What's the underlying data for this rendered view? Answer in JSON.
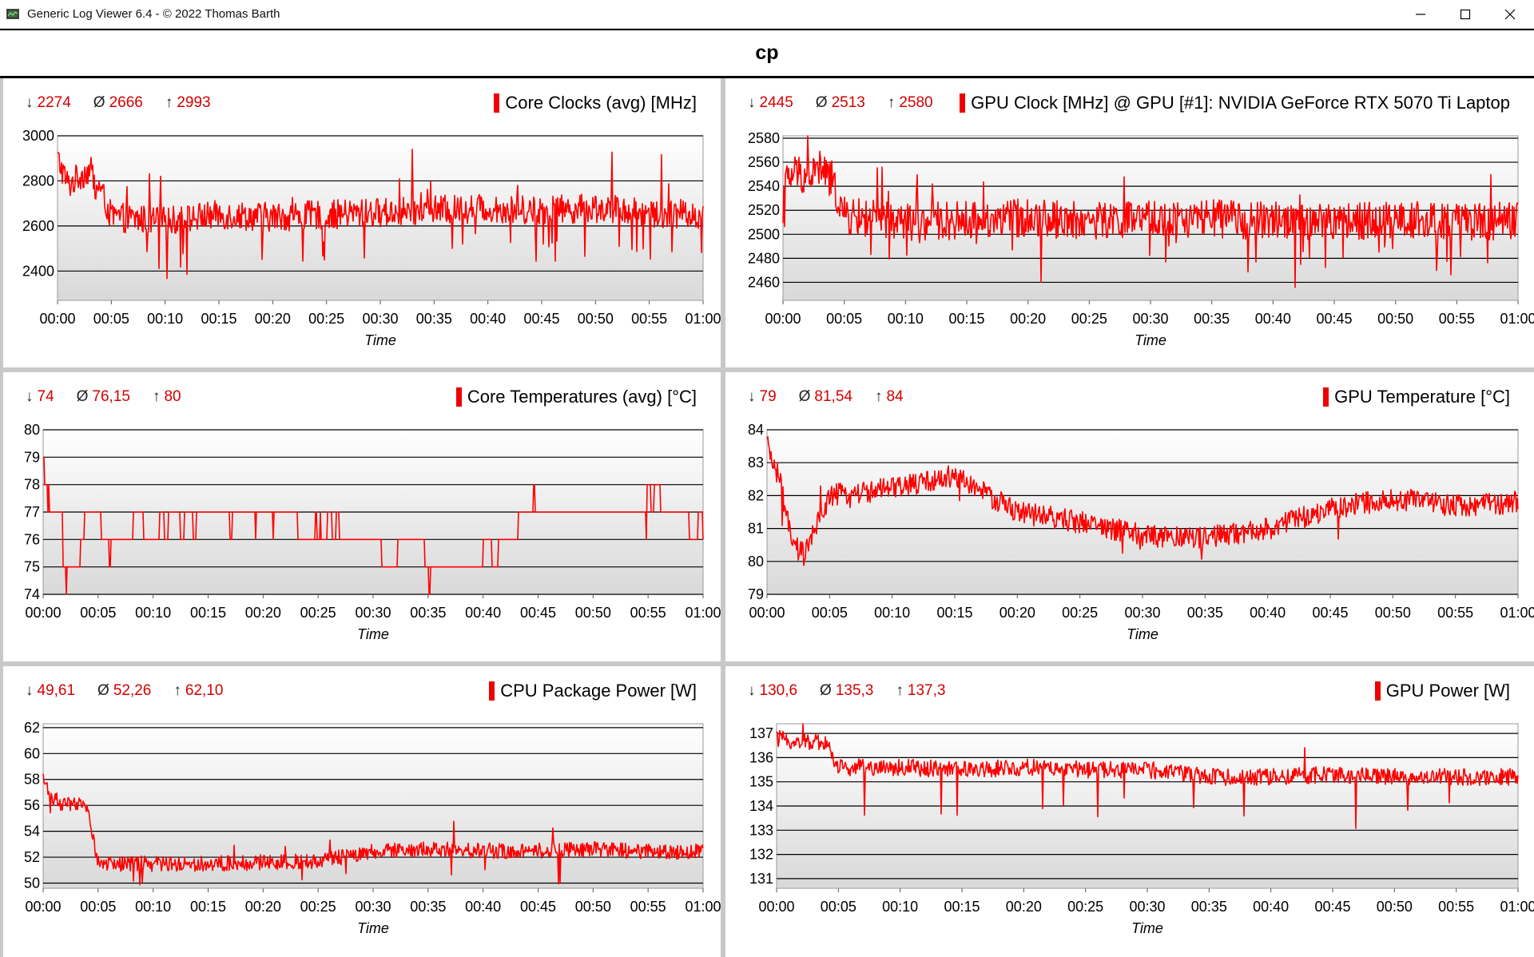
{
  "window": {
    "title": "Generic Log Viewer 6.4 - © 2022 Thomas Barth",
    "controls": [
      "minimize",
      "maximize",
      "close"
    ]
  },
  "header": {
    "title": "cp"
  },
  "colors": {
    "line": "#ff0000",
    "stats": "#d40000",
    "marker": "#ee0000"
  },
  "panels": [
    {
      "title": "Core Clocks (avg) [MHz]",
      "stats": {
        "min": "2274",
        "avg": "2666",
        "max": "2993"
      },
      "x_label": "Time",
      "x_ticks": [
        "00:00",
        "00:05",
        "00:10",
        "00:15",
        "00:20",
        "00:25",
        "00:30",
        "00:35",
        "00:40",
        "00:45",
        "00:50",
        "00:55",
        "01:00"
      ],
      "y_ticks": [
        "3000",
        "2800",
        "2600",
        "2400"
      ]
    },
    {
      "title": "GPU Clock [MHz] @ GPU [#1]: NVIDIA GeForce RTX 5070 Ti Laptop",
      "stats": {
        "min": "2445",
        "avg": "2513",
        "max": "2580"
      },
      "x_label": "Time",
      "x_ticks": [
        "00:00",
        "00:05",
        "00:10",
        "00:15",
        "00:20",
        "00:25",
        "00:30",
        "00:35",
        "00:40",
        "00:45",
        "00:50",
        "00:55",
        "01:00"
      ],
      "y_ticks": [
        "2580",
        "2560",
        "2540",
        "2520",
        "2500",
        "2480",
        "2460"
      ]
    },
    {
      "title": "Core Temperatures (avg) [°C]",
      "stats": {
        "min": "74",
        "avg": "76,15",
        "max": "80"
      },
      "x_label": "Time",
      "x_ticks": [
        "00:00",
        "00:05",
        "00:10",
        "00:15",
        "00:20",
        "00:25",
        "00:30",
        "00:35",
        "00:40",
        "00:45",
        "00:50",
        "00:55",
        "01:00"
      ],
      "y_ticks": [
        "80",
        "79",
        "78",
        "77",
        "76",
        "75",
        "74"
      ]
    },
    {
      "title": "GPU Temperature [°C]",
      "stats": {
        "min": "79",
        "avg": "81,54",
        "max": "84"
      },
      "x_label": "Time",
      "x_ticks": [
        "00:00",
        "00:05",
        "00:10",
        "00:15",
        "00:20",
        "00:25",
        "00:30",
        "00:35",
        "00:40",
        "00:45",
        "00:50",
        "00:55",
        "01:00"
      ],
      "y_ticks": [
        "84",
        "83",
        "82",
        "81",
        "80",
        "79"
      ]
    },
    {
      "title": "CPU Package Power [W]",
      "stats": {
        "min": "49,61",
        "avg": "52,26",
        "max": "62,10"
      },
      "x_label": "Time",
      "x_ticks": [
        "00:00",
        "00:05",
        "00:10",
        "00:15",
        "00:20",
        "00:25",
        "00:30",
        "00:35",
        "00:40",
        "00:45",
        "00:50",
        "00:55",
        "01:00"
      ],
      "y_ticks": [
        "62",
        "60",
        "58",
        "56",
        "54",
        "52",
        "50"
      ]
    },
    {
      "title": "GPU Power [W]",
      "stats": {
        "min": "130,6",
        "avg": "135,3",
        "max": "137,3"
      },
      "x_label": "Time",
      "x_ticks": [
        "00:00",
        "00:05",
        "00:10",
        "00:15",
        "00:20",
        "00:25",
        "00:30",
        "00:35",
        "00:40",
        "00:45",
        "00:50",
        "00:55",
        "01:00"
      ],
      "y_ticks": [
        "137",
        "136",
        "135",
        "134",
        "133",
        "132",
        "131"
      ]
    }
  ],
  "chart_data": [
    {
      "type": "line",
      "title": "Core Clocks (avg) [MHz]",
      "xlabel": "Time",
      "ylabel": "",
      "x_range": [
        "00:00",
        "01:00"
      ],
      "ylim": [
        2270,
        3000
      ],
      "y_ticks": [
        2400,
        2600,
        2800,
        3000
      ],
      "grid": true,
      "series": [
        {
          "name": "Core Clocks (avg) [MHz]",
          "x": [
            "00:00",
            "00:01",
            "00:02",
            "00:03",
            "00:04",
            "00:05",
            "00:10",
            "00:15",
            "00:20",
            "00:25",
            "00:30",
            "00:35",
            "00:40",
            "00:45",
            "00:50",
            "00:55",
            "01:00"
          ],
          "values": [
            2900,
            2780,
            2820,
            2850,
            2760,
            2640,
            2620,
            2650,
            2640,
            2650,
            2660,
            2670,
            2680,
            2670,
            2680,
            2660,
            2650
          ]
        }
      ]
    },
    {
      "type": "line",
      "title": "GPU Clock [MHz] @ GPU [#1]: NVIDIA GeForce RTX 5070 Ti Laptop",
      "xlabel": "Time",
      "ylabel": "",
      "x_range": [
        "00:00",
        "01:00"
      ],
      "ylim": [
        2445,
        2582
      ],
      "y_ticks": [
        2460,
        2480,
        2500,
        2520,
        2540,
        2560,
        2580
      ],
      "grid": true,
      "series": [
        {
          "name": "GPU Clock [MHz]",
          "x": [
            "00:00",
            "00:01",
            "00:02",
            "00:03",
            "00:04",
            "00:05",
            "00:10",
            "00:15",
            "00:20",
            "00:25",
            "00:30",
            "00:35",
            "00:40",
            "00:45",
            "00:50",
            "00:55",
            "01:00"
          ],
          "values": [
            2540,
            2552,
            2548,
            2555,
            2545,
            2515,
            2510,
            2512,
            2514,
            2511,
            2512,
            2513,
            2511,
            2510,
            2512,
            2510,
            2512
          ]
        }
      ]
    },
    {
      "type": "line",
      "title": "Core Temperatures (avg) [°C]",
      "xlabel": "Time",
      "ylabel": "",
      "x_range": [
        "00:00",
        "01:00"
      ],
      "ylim": [
        74,
        80
      ],
      "y_ticks": [
        74,
        75,
        76,
        77,
        78,
        79,
        80
      ],
      "grid": true,
      "series": [
        {
          "name": "Core Temperatures (avg) [°C]",
          "x": [
            "00:00",
            "00:01",
            "00:02",
            "00:03",
            "00:04",
            "00:05",
            "00:10",
            "00:15",
            "00:20",
            "00:25",
            "00:30",
            "00:35",
            "00:40",
            "00:44",
            "00:45",
            "00:50",
            "00:55",
            "01:00"
          ],
          "values": [
            79,
            76,
            75,
            76,
            77,
            76,
            76,
            77,
            77,
            76,
            76,
            75,
            75,
            77,
            77,
            77,
            77,
            77
          ]
        }
      ]
    },
    {
      "type": "line",
      "title": "GPU Temperature [°C]",
      "xlabel": "Time",
      "ylabel": "",
      "x_range": [
        "00:00",
        "01:00"
      ],
      "ylim": [
        79,
        84
      ],
      "y_ticks": [
        79,
        80,
        81,
        82,
        83,
        84
      ],
      "grid": true,
      "series": [
        {
          "name": "GPU Temperature [°C]",
          "x": [
            "00:00",
            "00:01",
            "00:02",
            "00:03",
            "00:05",
            "00:10",
            "00:15",
            "00:20",
            "00:25",
            "00:30",
            "00:35",
            "00:40",
            "00:45",
            "00:50",
            "00:55",
            "01:00"
          ],
          "values": [
            83.5,
            82.5,
            80.5,
            80.2,
            82.0,
            82.2,
            82.6,
            81.5,
            81.2,
            80.8,
            80.7,
            81.0,
            81.6,
            81.9,
            81.7,
            81.8
          ]
        }
      ]
    },
    {
      "type": "line",
      "title": "CPU Package Power [W]",
      "xlabel": "Time",
      "ylabel": "",
      "x_range": [
        "00:00",
        "01:00"
      ],
      "ylim": [
        49.6,
        62.3
      ],
      "y_ticks": [
        50,
        52,
        54,
        56,
        58,
        60,
        62
      ],
      "grid": true,
      "series": [
        {
          "name": "CPU Package Power [W]",
          "x": [
            "00:00",
            "00:01",
            "00:02",
            "00:03",
            "00:04",
            "00:05",
            "00:10",
            "00:15",
            "00:20",
            "00:25",
            "00:30",
            "00:35",
            "00:40",
            "00:45",
            "00:50",
            "00:55",
            "01:00"
          ],
          "values": [
            58,
            56.5,
            56,
            56,
            56,
            51.5,
            51.5,
            51.5,
            51.6,
            51.7,
            52.4,
            52.6,
            52.5,
            52.5,
            52.6,
            52.4,
            52.5
          ]
        }
      ]
    },
    {
      "type": "line",
      "title": "GPU Power [W]",
      "xlabel": "Time",
      "ylabel": "",
      "x_range": [
        "00:00",
        "01:00"
      ],
      "ylim": [
        130.6,
        137.4
      ],
      "y_ticks": [
        131,
        132,
        133,
        134,
        135,
        136,
        137
      ],
      "grid": true,
      "series": [
        {
          "name": "GPU Power [W]",
          "x": [
            "00:00",
            "00:01",
            "00:02",
            "00:03",
            "00:04",
            "00:05",
            "00:10",
            "00:15",
            "00:20",
            "00:25",
            "00:30",
            "00:35",
            "00:40",
            "00:45",
            "00:50",
            "00:55",
            "01:00"
          ],
          "values": [
            136.8,
            136.7,
            136.6,
            136.7,
            136.6,
            135.6,
            135.6,
            135.5,
            135.6,
            135.5,
            135.5,
            135.2,
            135.2,
            135.3,
            135.2,
            135.2,
            135.2
          ]
        }
      ]
    }
  ]
}
